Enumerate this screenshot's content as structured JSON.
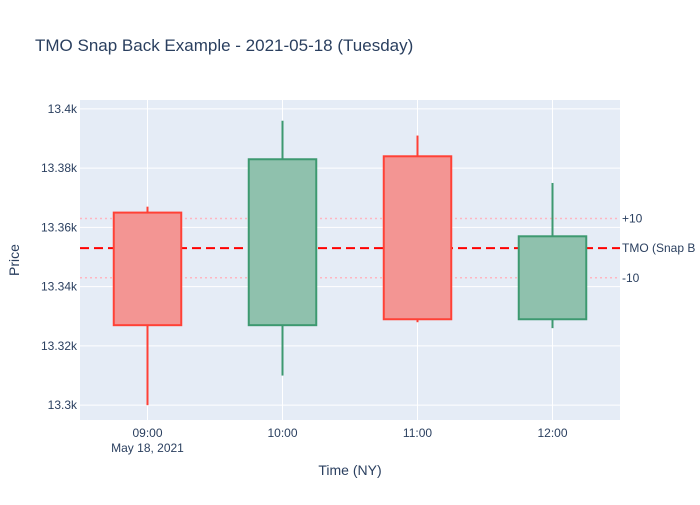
{
  "chart_data": {
    "type": "candlestick",
    "title": "TMO Snap Back Example - 2021-05-18 (Tuesday)",
    "xlabel": "Time (NY)",
    "ylabel": "Price",
    "x_categories": [
      "09:00",
      "10:00",
      "11:00",
      "12:00"
    ],
    "x_sublabel": "May 18, 2021",
    "ylim": [
      13295,
      13403
    ],
    "yticks": [
      13300,
      13320,
      13340,
      13360,
      13380,
      13400
    ],
    "ytick_labels": [
      "13.3k",
      "13.32k",
      "13.34k",
      "13.36k",
      "13.38k",
      "13.4k"
    ],
    "candles": [
      {
        "time": "09:00",
        "open": 13365,
        "high": 13367,
        "low": 13300,
        "close": 13327
      },
      {
        "time": "10:00",
        "open": 13327,
        "high": 13396,
        "low": 13310,
        "close": 13383
      },
      {
        "time": "11:00",
        "open": 13384,
        "high": 13391,
        "low": 13328,
        "close": 13329
      },
      {
        "time": "12:00",
        "open": 13329,
        "high": 13375,
        "low": 13326,
        "close": 13357
      }
    ],
    "reference_lines": [
      {
        "label": "+10",
        "value": 13363,
        "style": "dotted",
        "color": "#ffb6c1"
      },
      {
        "label": "TMO (Snap B",
        "value": 13353,
        "style": "dashed",
        "color": "#ff0000"
      },
      {
        "label": "-10",
        "value": 13343,
        "style": "dotted",
        "color": "#ffb6c1"
      }
    ],
    "colors": {
      "increasing_line": "#3d9970",
      "increasing_fill": "#8fc1ad",
      "decreasing_line": "#ff4136",
      "decreasing_fill": "#f39593",
      "plot_bg": "#e5ecf6",
      "grid": "#ffffff",
      "text": "#2a3f5f"
    },
    "grid": true
  }
}
